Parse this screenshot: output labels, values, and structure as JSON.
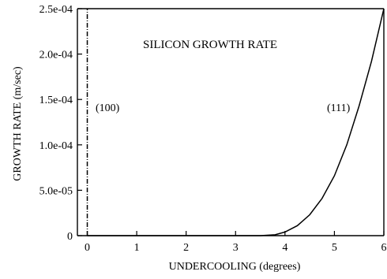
{
  "chart_data": {
    "type": "line",
    "title": "SILICON GROWTH RATE",
    "xlabel": "UNDERCOOLING (degrees)",
    "ylabel": "GROWTH RATE (m/sec)",
    "xlim": [
      -0.2,
      6
    ],
    "ylim": [
      0,
      0.00025
    ],
    "x_ticks": [
      "0",
      "1",
      "2",
      "3",
      "4",
      "5",
      "6"
    ],
    "y_ticks": [
      "0",
      "5.0e-05",
      "1.0e-04",
      "1.5e-04",
      "2.0e-04",
      "2.5e-04"
    ],
    "grid": false,
    "legend": "none",
    "series": [
      {
        "name": "(100)",
        "style": "dash-dot",
        "x": [
          0,
          0
        ],
        "y": [
          0,
          0.00025
        ]
      },
      {
        "name": "(111)",
        "style": "solid",
        "x": [
          0,
          1,
          2,
          3,
          3.5,
          3.8,
          4,
          4.25,
          4.5,
          4.75,
          5,
          5.25,
          5.5,
          5.75,
          6
        ],
        "y": [
          0,
          0,
          0,
          0,
          0,
          1e-06,
          4e-06,
          1.1e-05,
          2.3e-05,
          4.1e-05,
          6.6e-05,
          0.0001,
          0.000143,
          0.000192,
          0.00025
        ]
      }
    ],
    "annotations": [
      {
        "text": "(100)",
        "x": 0.18,
        "y": 0.000135
      },
      {
        "text": "(111)",
        "x": 4.85,
        "y": 0.000135
      }
    ]
  }
}
